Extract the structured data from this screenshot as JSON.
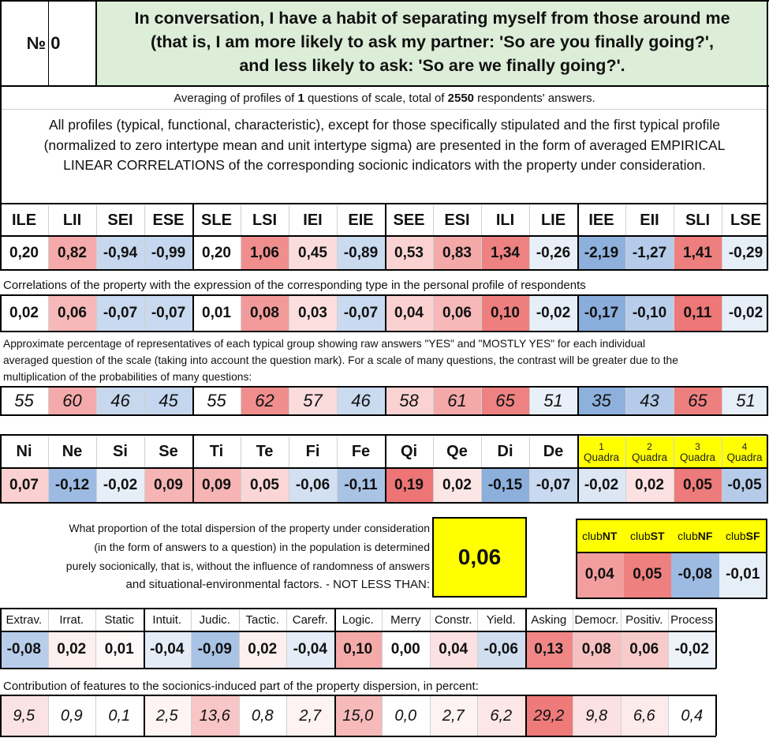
{
  "header": {
    "number_label": "№ 0",
    "question_lines": [
      "In conversation, I have a habit of separating myself from those around me",
      "(that is, I am more likely to ask my partner: 'So are you finally going?',",
      "and less likely to ask: 'So are we finally going?'."
    ]
  },
  "summary": {
    "averaging_prefix": "Averaging of profiles of ",
    "questions_count": "1",
    "averaging_middle": " questions of scale, total of ",
    "respondents_count": "2550",
    "averaging_suffix": " respondents' answers.",
    "description_lines": [
      "All profiles (typical, functional, characteristic), except for those specifically stipulated and the first typical profile",
      "(normalized to zero intertype mean and unit intertype sigma) are presented in the form of averaged EMPIRICAL",
      "LINEAR CORRELATIONS of the corresponding socionic indicators with the property under consideration."
    ]
  },
  "types": {
    "headers": [
      "ILE",
      "LII",
      "SEI",
      "ESE",
      "SLE",
      "LSI",
      "IEI",
      "EIE",
      "SEE",
      "ESI",
      "ILI",
      "LIE",
      "IEE",
      "EII",
      "SLI",
      "LSE"
    ],
    "profile": [
      "0,20",
      "0,82",
      "-0,94",
      "-0,99",
      "0,20",
      "1,06",
      "0,45",
      "-0,89",
      "0,53",
      "0,83",
      "1,34",
      "-0,26",
      "-2,19",
      "-1,27",
      "1,41",
      "-0,29"
    ],
    "profile_colors": [
      "#ffffff",
      "#f4aaaa",
      "#c7d8ee",
      "#c5d7ee",
      "#ffffff",
      "#f08e8e",
      "#fbdcdc",
      "#cadaef",
      "#fad2d2",
      "#f4a9a9",
      "#ee8282",
      "#e8eff8",
      "#8eb0dc",
      "#b5cbe9",
      "#ed7f7f",
      "#e6eef8"
    ],
    "correlation_caption": "Correlations of the property with the expression of the corresponding type in the personal profile of respondents",
    "correlations": [
      "0,02",
      "0,06",
      "-0,07",
      "-0,07",
      "0,01",
      "0,08",
      "0,03",
      "-0,07",
      "0,04",
      "0,06",
      "0,10",
      "-0,02",
      "-0,17",
      "-0,10",
      "0,11",
      "-0,02"
    ],
    "correlation_colors": [
      "#ffffff",
      "#f6b8b8",
      "#c9d9ef",
      "#c9d9ef",
      "#ffffff",
      "#f29a9a",
      "#fcdede",
      "#c9d9ef",
      "#fad0d0",
      "#f6b8b8",
      "#ef7f7f",
      "#e6eef8",
      "#8aaedb",
      "#b8cdea",
      "#ee7777",
      "#e6eef8"
    ],
    "percentage_caption_lines": [
      "Approximate percentage of representatives of each typical group showing raw answers \"YES\" and \"MOSTLY YES\" for each individual",
      "averaged question of the scale (taking into account the question mark). For a scale of many questions, the contrast will be greater due to the",
      "multiplication of the probabilities of many questions:"
    ],
    "percentages": [
      "55",
      "60",
      "46",
      "45",
      "55",
      "62",
      "57",
      "46",
      "58",
      "61",
      "65",
      "51",
      "35",
      "43",
      "65",
      "51"
    ],
    "percentage_colors": [
      "#ffffff",
      "#f4aaaa",
      "#c7d8ee",
      "#c5d7ee",
      "#ffffff",
      "#f08e8e",
      "#fbdcdc",
      "#cadaef",
      "#fad2d2",
      "#f4a9a9",
      "#ee8282",
      "#e8eff8",
      "#8eb0dc",
      "#b5cbe9",
      "#ed7f7f",
      "#e6eef8"
    ]
  },
  "functions": {
    "headers": [
      "Ni",
      "Ne",
      "Si",
      "Se",
      "Ti",
      "Te",
      "Fi",
      "Fe",
      "Qi",
      "Qe",
      "Di",
      "De"
    ],
    "values": [
      "0,07",
      "-0,12",
      "-0,02",
      "0,09",
      "0,09",
      "0,05",
      "-0,06",
      "-0,11",
      "0,19",
      "0,02",
      "-0,15",
      "-0,07"
    ],
    "colors": [
      "#fad0d0",
      "#9dbbe2",
      "#e6eef8",
      "#f6b4b4",
      "#f6b4b4",
      "#fbd6d6",
      "#d2e0f1",
      "#a9c3e5",
      "#ee7575",
      "#fbe6e6",
      "#8cafdb",
      "#c9d9ef"
    ],
    "quadra_headers": [
      {
        "num": "1",
        "label": "Quadra"
      },
      {
        "num": "2",
        "label": "Quadra"
      },
      {
        "num": "3",
        "label": "Quadra"
      },
      {
        "num": "4",
        "label": "Quadra"
      }
    ],
    "quadra_values": [
      "-0,02",
      "0,02",
      "0,05",
      "-0,05"
    ],
    "quadra_colors": [
      "#dde7f4",
      "#fbe1e1",
      "#ee7b7b",
      "#b5cbe9"
    ]
  },
  "dispersion": {
    "lines": [
      "What proportion of the total dispersion of the property under consideration",
      "(in the form of answers to a question) in the population is determined",
      "purely socionically, that is, without the influence of randomness of answers"
    ],
    "last_line": "and situational-environmental factors. - NOT LESS THAN:",
    "value": "0,06"
  },
  "clubs": {
    "headers": [
      {
        "prefix": "club",
        "bold": "NT"
      },
      {
        "prefix": "club",
        "bold": "ST"
      },
      {
        "prefix": "club",
        "bold": "NF"
      },
      {
        "prefix": "club",
        "bold": "SF"
      }
    ],
    "values": [
      "0,04",
      "0,05",
      "-0,08",
      "-0,01"
    ],
    "colors": [
      "#f39e9e",
      "#ef8080",
      "#9dbbe2",
      "#e6eef8"
    ]
  },
  "traits": {
    "headers": [
      "Extrav.",
      "Irrat.",
      "Static",
      "Intuit.",
      "Judic.",
      "Tactic.",
      "Carefr.",
      "Logic.",
      "Merry",
      "Constr.",
      "Yield.",
      "Asking",
      "Democr.",
      "Positiv.",
      "Process"
    ],
    "values": [
      "-0,08",
      "0,02",
      "0,01",
      "-0,04",
      "-0,09",
      "0,02",
      "-0,04",
      "0,10",
      "0,00",
      "0,04",
      "-0,06",
      "0,13",
      "0,08",
      "0,06",
      "-0,02"
    ],
    "colors": [
      "#b8cdea",
      "#fcefef",
      "#fff8f8",
      "#e4ecf7",
      "#a9c3e5",
      "#fcefef",
      "#e4ecf7",
      "#f5aaaa",
      "#ffffff",
      "#fbe1e1",
      "#d0def0",
      "#f08686",
      "#f6c0c0",
      "#f8cbcb",
      "#eef3fa"
    ],
    "contribution_caption": "Contribution of features to the sociotics-induced part of the property dispersion, in percent:",
    "contributions": [
      "9,5",
      "0,9",
      "0,1",
      "2,5",
      "13,6",
      "0,8",
      "2,7",
      "15,0",
      "0,0",
      "2,7",
      "6,2",
      "29,2",
      "9,8",
      "6,6",
      "0,4"
    ],
    "contribution_colors": [
      "#fbe3e3",
      "#ffffff",
      "#ffffff",
      "#fef4f4",
      "#f8c6c6",
      "#ffffff",
      "#fef3f3",
      "#f6baba",
      "#ffffff",
      "#fef3f3",
      "#fce6e6",
      "#ee7a7a",
      "#fbe1e1",
      "#fdeaea",
      "#ffffff"
    ]
  }
}
